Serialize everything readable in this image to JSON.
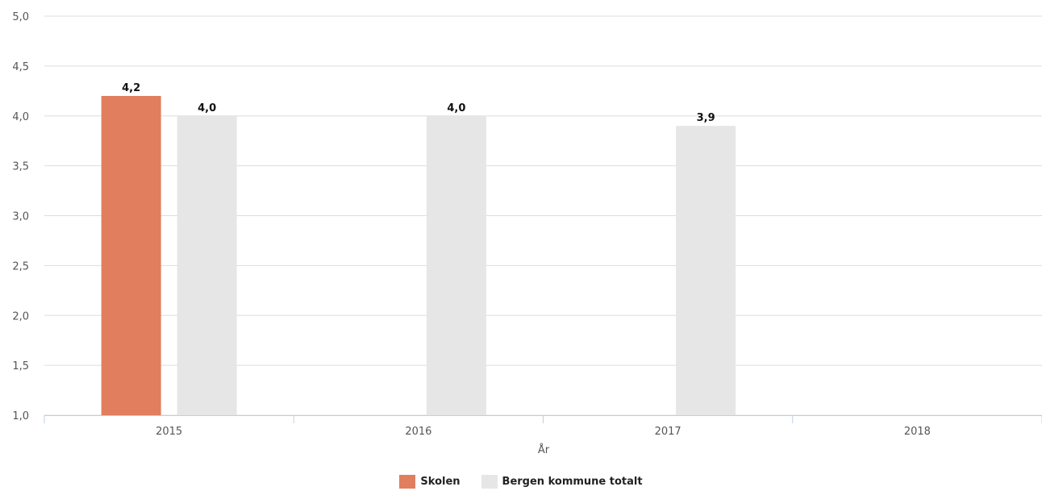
{
  "chart_data": {
    "type": "bar",
    "categories": [
      "2015",
      "2016",
      "2017",
      "2018"
    ],
    "series": [
      {
        "name": "Skolen",
        "values": [
          4.2,
          null,
          null,
          null
        ],
        "labels": [
          "4,2",
          "",
          "",
          ""
        ],
        "color": "#e07e5e"
      },
      {
        "name": "Bergen kommune totalt",
        "values": [
          4.0,
          4.0,
          3.9,
          null
        ],
        "labels": [
          "4,0",
          "4,0",
          "3,9",
          ""
        ],
        "color": "#e6e6e6"
      }
    ],
    "xlabel": "År",
    "ylabel": "",
    "ylim": [
      1.0,
      5.0
    ],
    "yticks": [
      "1,0",
      "1,5",
      "2,0",
      "2,5",
      "3,0",
      "3,5",
      "4,0",
      "4,5",
      "5,0"
    ],
    "grid": true,
    "legend_position": "bottom-center"
  }
}
